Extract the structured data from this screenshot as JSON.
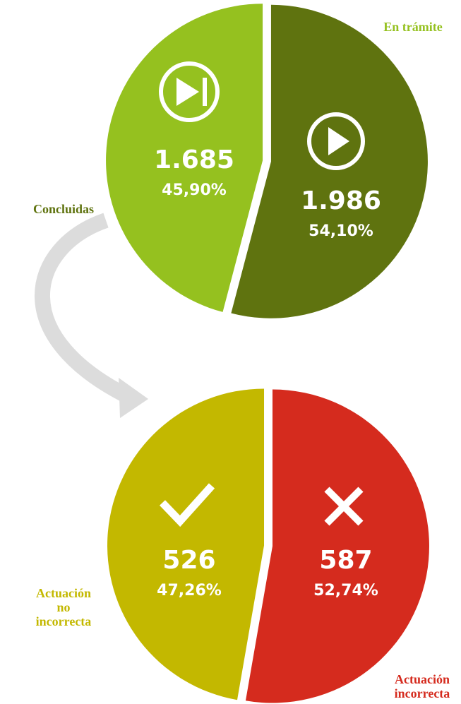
{
  "chart_data": [
    {
      "type": "pie",
      "categories": [
        "Concluidas",
        "En trámite"
      ],
      "values": [
        45.9,
        54.1
      ],
      "value_labels": [
        "45,90%",
        "54,10%"
      ],
      "counts": [
        1685,
        1986
      ],
      "count_labels": [
        "1.685",
        "1.986"
      ],
      "colors": [
        "#95c11f",
        "#5f730f"
      ]
    },
    {
      "type": "pie",
      "categories": [
        "Actuación no incorrecta",
        "Actuación incorrecta"
      ],
      "values": [
        47.26,
        52.74
      ],
      "value_labels": [
        "47,26%",
        "52,74%"
      ],
      "counts": [
        526,
        587
      ],
      "count_labels": [
        "526",
        "587"
      ],
      "colors": [
        "#c3b800",
        "#d52b1e"
      ]
    }
  ]
}
